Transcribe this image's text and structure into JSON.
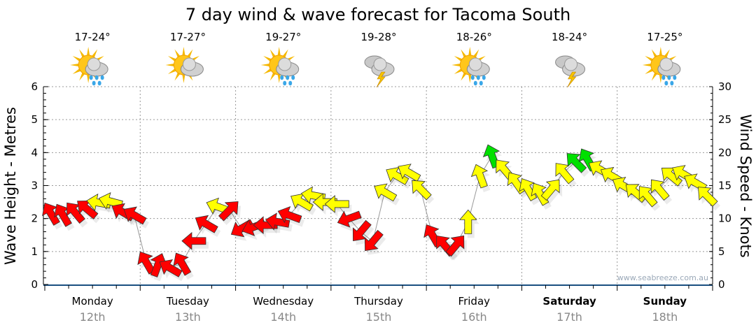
{
  "chart_data": {
    "type": "scatter",
    "title": "7 day wind & wave forecast for Tacoma South",
    "ylabel_left": "Wave Height - Metres",
    "ylabel_right": "Wind Speed - Knots",
    "ylim_left": [
      0,
      6
    ],
    "ylim_right": [
      0,
      30
    ],
    "yticks_left": [
      "0",
      "1",
      "2",
      "3",
      "4",
      "5",
      "6"
    ],
    "yticks_right": [
      "0",
      "5",
      "10",
      "15",
      "20",
      "25",
      "30"
    ],
    "grid": true,
    "watermark": "www.seabreeze.com.au",
    "days": [
      {
        "name": "Monday",
        "date": "12th",
        "temp": "17-24°",
        "icon": "sun-cloud-rain",
        "bold": false
      },
      {
        "name": "Tuesday",
        "date": "13th",
        "temp": "17-27°",
        "icon": "sun-cloud",
        "bold": false
      },
      {
        "name": "Wednesday",
        "date": "14th",
        "temp": "19-27°",
        "icon": "sun-cloud-rain",
        "bold": false
      },
      {
        "name": "Thursday",
        "date": "15th",
        "temp": "19-28°",
        "icon": "storm",
        "bold": false
      },
      {
        "name": "Friday",
        "date": "16th",
        "temp": "18-26°",
        "icon": "sun-cloud-rain",
        "bold": false
      },
      {
        "name": "Saturday",
        "date": "17th",
        "temp": "18-24°",
        "icon": "storm",
        "bold": true
      },
      {
        "name": "Sunday",
        "date": "18th",
        "temp": "17-25°",
        "icon": "sun-cloud-rain",
        "bold": true
      }
    ],
    "rating_colors": {
      "poor": "#ff0000",
      "ok": "#ffff00",
      "good": "#00e000"
    },
    "wind_series_note": "3-hourly points: [knots, arrow heading deg, rating]",
    "wind": [
      [
        10.8,
        330,
        "poor"
      ],
      [
        10.6,
        330,
        "poor"
      ],
      [
        11.0,
        320,
        "poor"
      ],
      [
        11.5,
        310,
        "poor"
      ],
      [
        12.4,
        280,
        "ok"
      ],
      [
        12.6,
        285,
        "ok"
      ],
      [
        11.0,
        300,
        "poor"
      ],
      [
        10.5,
        300,
        "poor"
      ],
      [
        3.4,
        330,
        "poor"
      ],
      [
        3.0,
        20,
        "poor"
      ],
      [
        2.5,
        300,
        "poor"
      ],
      [
        3.2,
        330,
        "poor"
      ],
      [
        6.6,
        270,
        "poor"
      ],
      [
        9.2,
        300,
        "poor"
      ],
      [
        11.8,
        290,
        "ok"
      ],
      [
        11.3,
        45,
        "poor"
      ],
      [
        8.5,
        240,
        "poor"
      ],
      [
        8.7,
        250,
        "poor"
      ],
      [
        9.0,
        270,
        "poor"
      ],
      [
        9.5,
        280,
        "poor"
      ],
      [
        10.5,
        290,
        "poor"
      ],
      [
        12.5,
        300,
        "ok"
      ],
      [
        13.5,
        280,
        "ok"
      ],
      [
        12.5,
        270,
        "ok"
      ],
      [
        12.2,
        270,
        "ok"
      ],
      [
        10.0,
        250,
        "poor"
      ],
      [
        8.0,
        220,
        "poor"
      ],
      [
        6.5,
        220,
        "poor"
      ],
      [
        14.0,
        300,
        "ok"
      ],
      [
        16.5,
        300,
        "ok"
      ],
      [
        17.0,
        300,
        "ok"
      ],
      [
        14.5,
        315,
        "ok"
      ],
      [
        7.5,
        330,
        "poor"
      ],
      [
        6.0,
        320,
        "poor"
      ],
      [
        6.0,
        40,
        "poor"
      ],
      [
        9.5,
        0,
        "ok"
      ],
      [
        16.5,
        340,
        "ok"
      ],
      [
        19.5,
        340,
        "good"
      ],
      [
        17.5,
        320,
        "ok"
      ],
      [
        15.5,
        325,
        "ok"
      ],
      [
        14.5,
        330,
        "ok"
      ],
      [
        13.8,
        330,
        "ok"
      ],
      [
        14.5,
        40,
        "ok"
      ],
      [
        17.0,
        320,
        "ok"
      ],
      [
        18.6,
        315,
        "good"
      ],
      [
        19.0,
        330,
        "good"
      ],
      [
        17.5,
        300,
        "ok"
      ],
      [
        16.5,
        300,
        "ok"
      ],
      [
        15.0,
        300,
        "ok"
      ],
      [
        14.0,
        310,
        "ok"
      ],
      [
        13.5,
        320,
        "ok"
      ],
      [
        14.5,
        320,
        "ok"
      ],
      [
        16.5,
        310,
        "ok"
      ],
      [
        16.8,
        300,
        "ok"
      ],
      [
        15.5,
        300,
        "ok"
      ],
      [
        13.5,
        315,
        "ok"
      ]
    ]
  }
}
